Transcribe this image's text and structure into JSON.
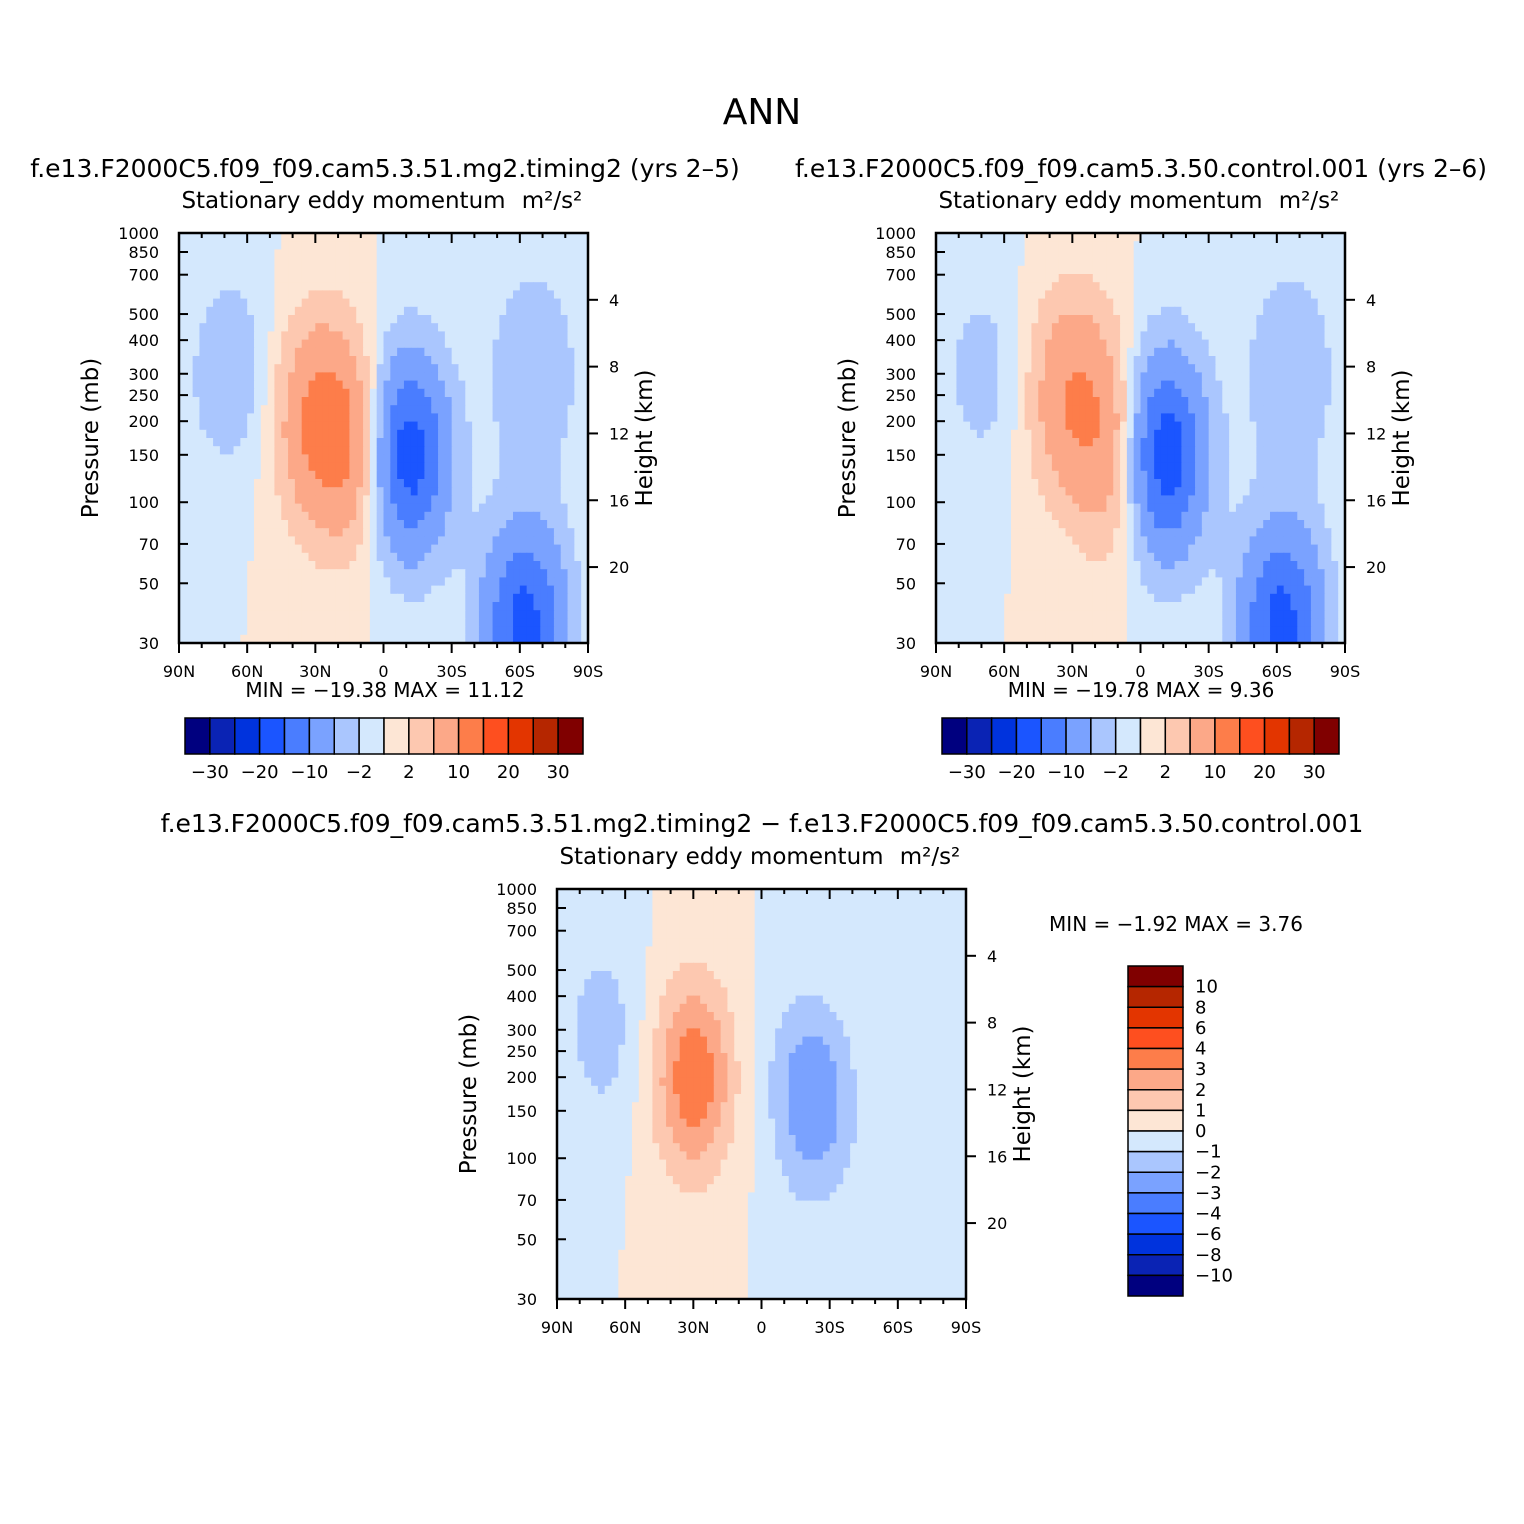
{
  "title": "ANN",
  "panels": [
    {
      "id": "p1",
      "case_title": "f.e13.F2000C5.f09_f09.cam5.3.51.mg2.timing2  (yrs  2–5)",
      "variable": "Stationary  eddy  momentum",
      "units": "m²/s²",
      "stats": "MIN  =  −19.38    MAX  =    11.12"
    },
    {
      "id": "p2",
      "case_title": "f.e13.F2000C5.f09_f09.cam5.3.50.control.001  (yrs  2–6)",
      "variable": "Stationary  eddy  momentum",
      "units": "m²/s²",
      "stats": "MIN  =  −19.78    MAX  =     9.36"
    },
    {
      "id": "p3",
      "case_title": "f.e13.F2000C5.f09_f09.cam5.3.51.mg2.timing2  −  f.e13.F2000C5.f09_f09.cam5.3.50.control.001",
      "variable": "Stationary  eddy  momentum",
      "units": "m²/s²",
      "stats": "MIN  =    −1.92    MAX  =     3.76"
    }
  ],
  "axes": {
    "ylabel_left": "Pressure  (mb)",
    "ylabel_right": "Height  (km)",
    "pressure_ticks": [
      "30",
      "50",
      "70",
      "100",
      "150",
      "200",
      "250",
      "300",
      "400",
      "500",
      "700",
      "850",
      "1000"
    ],
    "height_ticks": [
      "20",
      "16",
      "12",
      "8",
      "4"
    ],
    "lat_ticks": [
      "90N",
      "60N",
      "30N",
      "0",
      "30S",
      "60S",
      "90S"
    ]
  },
  "colorbars": {
    "abs_labels": [
      "−30",
      "−20",
      "−10",
      "−2",
      "2",
      "10",
      "20",
      "30"
    ],
    "diff_labels": [
      "10",
      "8",
      "6",
      "4",
      "3",
      "2",
      "1",
      "0",
      "−1",
      "−2",
      "−3",
      "−4",
      "−6",
      "−8",
      "−10"
    ],
    "colors": [
      "#00007f",
      "#0a23b4",
      "#0033dd",
      "#1b55ff",
      "#4a7dff",
      "#7aa2ff",
      "#aac6fe",
      "#d4e8fd",
      "#fde6d5",
      "#fdc8b0",
      "#fca888",
      "#fd7d4a",
      "#fe4f1f",
      "#e33500",
      "#b52600",
      "#800000"
    ]
  },
  "chart_data": [
    {
      "type": "heatmap",
      "panel": "p1",
      "x": [
        -90,
        90
      ],
      "ylim_mb": [
        1000,
        30
      ],
      "min": -19.38,
      "max": 11.12,
      "contour_levels": [
        -30,
        -25,
        -20,
        -15,
        -10,
        -5,
        -2,
        0,
        2,
        5,
        10,
        15,
        20,
        25,
        30
      ],
      "features": [
        {
          "lat": -28,
          "p": 200,
          "v": 11.1
        },
        {
          "lat": -10,
          "p": 150,
          "v": 8
        },
        {
          "lat": 10,
          "p": 150,
          "v": -19.4
        },
        {
          "lat": 62,
          "p": 35,
          "v": -17
        },
        {
          "lat": 66,
          "p": 300,
          "v": -5
        },
        {
          "lat": -68,
          "p": 300,
          "v": -4
        }
      ]
    },
    {
      "type": "heatmap",
      "panel": "p2",
      "x": [
        -90,
        90
      ],
      "ylim_mb": [
        1000,
        30
      ],
      "min": -19.78,
      "max": 9.36,
      "contour_levels": [
        -30,
        -25,
        -20,
        -15,
        -10,
        -5,
        -2,
        0,
        2,
        5,
        10,
        15,
        20,
        25,
        30
      ],
      "features": [
        {
          "lat": -30,
          "p": 250,
          "v": 9.4
        },
        {
          "lat": -10,
          "p": 150,
          "v": 8
        },
        {
          "lat": 10,
          "p": 150,
          "v": -19.8
        },
        {
          "lat": 62,
          "p": 35,
          "v": -17
        },
        {
          "lat": 66,
          "p": 300,
          "v": -5
        },
        {
          "lat": -70,
          "p": 300,
          "v": -3
        }
      ]
    },
    {
      "type": "heatmap",
      "panel": "p3",
      "x": [
        -90,
        90
      ],
      "ylim_mb": [
        1000,
        30
      ],
      "min": -1.92,
      "max": 3.76,
      "contour_levels": [
        -10,
        -8,
        -6,
        -4,
        -3,
        -2,
        -1,
        0,
        1,
        2,
        3,
        4,
        6,
        8,
        10
      ],
      "features": [
        {
          "lat": -30,
          "p": 200,
          "v": 3.76
        },
        {
          "lat": 25,
          "p": 150,
          "v": -1.9
        },
        {
          "lat": -70,
          "p": 300,
          "v": -1.5
        },
        {
          "lat": 18,
          "p": 200,
          "v": -1.2
        },
        {
          "lat": 80,
          "p": 300,
          "v": -1
        }
      ]
    }
  ]
}
